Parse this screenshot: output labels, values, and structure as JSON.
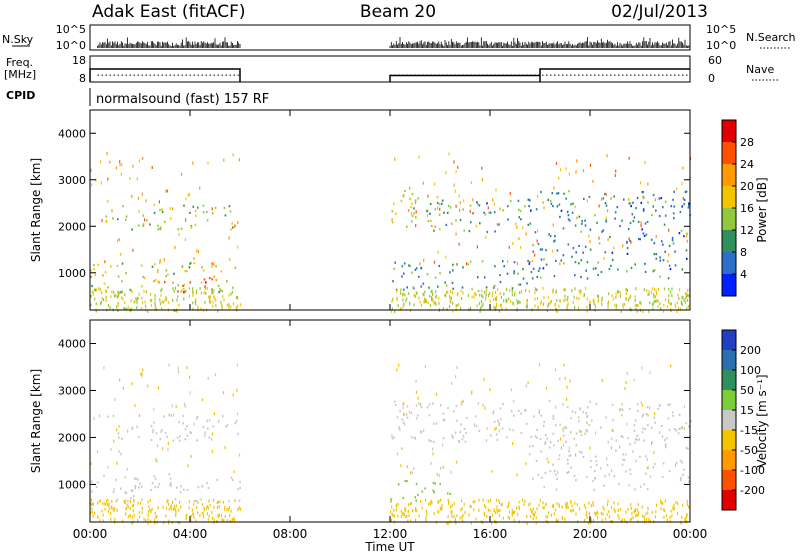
{
  "header": {
    "site": "Adak East (fitACF)",
    "beam": "Beam 20",
    "date": "02/Jul/2013"
  },
  "strips": {
    "nsky_label": "N.Sky",
    "nsearch_label": "N.Search",
    "freq_label_top": "Freq.",
    "freq_label_unit": "[MHz]",
    "nave_label": "Nave",
    "cpid_label": "CPID",
    "cpid_text": "normalsound (fast) 157 RF",
    "noise_ticks_left": [
      "10^5",
      "10^0"
    ],
    "noise_ticks_right": [
      "10^5",
      "10^0"
    ],
    "freq_ticks": [
      "18",
      "8"
    ],
    "nave_ticks": [
      "60",
      "0"
    ],
    "freq_series_mhz": [
      {
        "start_h": 0.0,
        "end_h": 6.0,
        "value": 13
      },
      {
        "start_h": 12.0,
        "end_h": 18.0,
        "value": 10.5
      },
      {
        "start_h": 18.0,
        "end_h": 24.0,
        "value": 13
      }
    ],
    "nave_level": 2
  },
  "chart_data": [
    {
      "type": "heatmap",
      "quantity": "power",
      "ylabel": "Slant Range [km]",
      "yticks": [
        "4000",
        "3000",
        "2000",
        "1000"
      ],
      "ylim": [
        200,
        4500
      ],
      "xlim": [
        0,
        24
      ],
      "data_gaps_h": [
        [
          6,
          12
        ]
      ],
      "colorbar": {
        "label": "Power [dB]",
        "ticks": [
          "28",
          "24",
          "20",
          "16",
          "12",
          "8",
          "4"
        ],
        "colors": [
          "#e00000",
          "#ff5000",
          "#ff9a00",
          "#f5c400",
          "#92c83c",
          "#2f8f5f",
          "#2a70c8",
          "#0020ff"
        ]
      },
      "echo_bands": [
        {
          "t0": 0.6,
          "t1": 6.0,
          "r0": 1950,
          "r1": 2500,
          "level": 14
        },
        {
          "t0": 0.0,
          "t1": 6.0,
          "r0": 600,
          "r1": 1250,
          "level": 16
        },
        {
          "t0": 2.5,
          "t1": 5.0,
          "r0": 600,
          "r1": 1000,
          "level": 24
        },
        {
          "t0": 12.0,
          "t1": 14.0,
          "r0": 1900,
          "r1": 2800,
          "level": 16
        },
        {
          "t0": 13.5,
          "t1": 17.5,
          "r0": 1900,
          "r1": 2600,
          "level": 10
        },
        {
          "t0": 17.5,
          "t1": 24.0,
          "r0": 900,
          "r1": 2800,
          "level": 8
        },
        {
          "t0": 12.0,
          "t1": 18.0,
          "r0": 600,
          "r1": 1300,
          "level": 10
        }
      ]
    },
    {
      "type": "heatmap",
      "quantity": "velocity",
      "ylabel": "Slant Range [km]",
      "yticks": [
        "4000",
        "3000",
        "2000",
        "1000"
      ],
      "ylim": [
        200,
        4500
      ],
      "xlim": [
        0,
        24
      ],
      "xticks": [
        "00:00",
        "04:00",
        "08:00",
        "12:00",
        "16:00",
        "20:00",
        "00:00"
      ],
      "xlabel": "Time UT",
      "data_gaps_h": [
        [
          6,
          12
        ]
      ],
      "colorbar": {
        "label": "Velocity [m s⁻¹]",
        "ticks": [
          "200",
          "100",
          "50",
          "15",
          "-15",
          "-50",
          "-100",
          "-200"
        ],
        "colors": [
          "#2040c0",
          "#2a6fb0",
          "#2f8f5f",
          "#7ccd3a",
          "#c8c8c8",
          "#f5c400",
          "#ff9a00",
          "#ff5000",
          "#e00000"
        ]
      },
      "echo_bands": [
        {
          "t0": 0.6,
          "t1": 6.0,
          "r0": 1950,
          "r1": 2500,
          "level": 0
        },
        {
          "t0": 0.0,
          "t1": 6.0,
          "r0": 600,
          "r1": 1250,
          "level": 0
        },
        {
          "t0": 12.0,
          "t1": 14.5,
          "r0": 650,
          "r1": 1100,
          "level": 60
        },
        {
          "t0": 12.0,
          "t1": 17.5,
          "r0": 1900,
          "r1": 2800,
          "level": 10
        },
        {
          "t0": 17.5,
          "t1": 24.0,
          "r0": 900,
          "r1": 2800,
          "level": 0
        }
      ]
    }
  ]
}
